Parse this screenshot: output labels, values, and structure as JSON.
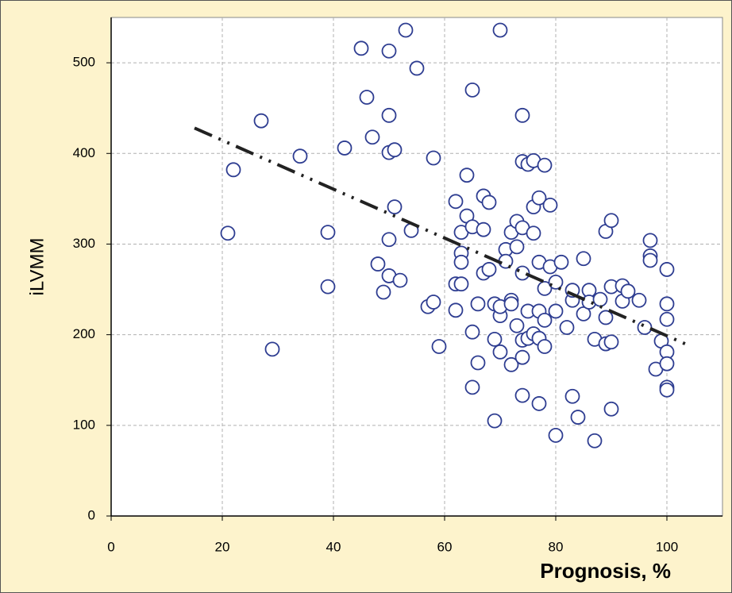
{
  "chart_data": {
    "type": "scatter",
    "x_label": "Prognosis, %",
    "y_label": "iLVMM",
    "xlim": [
      0,
      110
    ],
    "ylim": [
      0,
      550
    ],
    "xticks": [
      0,
      20,
      40,
      60,
      80,
      100
    ],
    "yticks": [
      0,
      100,
      200,
      300,
      400,
      500
    ],
    "grid": true,
    "color": "#2e3d91",
    "x": [
      21,
      22,
      27,
      29,
      34,
      39,
      39,
      42,
      45,
      46,
      47,
      48,
      49,
      50,
      50,
      50,
      50,
      50,
      51,
      51,
      52,
      53,
      54,
      55,
      57,
      58,
      58,
      59,
      62,
      62,
      62,
      63,
      63,
      63,
      63,
      64,
      64,
      65,
      65,
      65,
      65,
      66,
      66,
      67,
      67,
      67,
      68,
      68,
      69,
      69,
      69,
      70,
      70,
      70,
      70,
      71,
      71,
      72,
      72,
      72,
      72,
      73,
      73,
      73,
      74,
      74,
      74,
      74,
      74,
      74,
      74,
      75,
      75,
      75,
      76,
      76,
      76,
      76,
      77,
      77,
      77,
      77,
      77,
      78,
      78,
      78,
      78,
      79,
      79,
      80,
      80,
      80,
      81,
      82,
      83,
      83,
      83,
      84,
      85,
      85,
      86,
      86,
      87,
      87,
      88,
      89,
      89,
      89,
      90,
      90,
      90,
      90,
      92,
      92,
      93,
      95,
      96,
      97,
      97,
      97,
      98,
      99,
      100,
      100,
      100,
      100,
      100,
      100,
      100
    ],
    "y": [
      312,
      382,
      436,
      184,
      397,
      313,
      253,
      406,
      516,
      462,
      418,
      278,
      247,
      442,
      401,
      305,
      265,
      513,
      404,
      341,
      260,
      536,
      315,
      494,
      231,
      236,
      395,
      187,
      347,
      256,
      227,
      313,
      290,
      280,
      256,
      376,
      331,
      319,
      470,
      142,
      203,
      169,
      234,
      353,
      316,
      268,
      346,
      272,
      105,
      195,
      234,
      536,
      181,
      221,
      231,
      294,
      281,
      167,
      238,
      234,
      313,
      325,
      210,
      297,
      442,
      391,
      175,
      133,
      194,
      268,
      318,
      226,
      388,
      196,
      392,
      312,
      341,
      201,
      124,
      280,
      351,
      226,
      196,
      387,
      216,
      187,
      251,
      275,
      343,
      226,
      89,
      258,
      280,
      208,
      132,
      238,
      249,
      109,
      284,
      223,
      249,
      236,
      83,
      195,
      239,
      314,
      219,
      190,
      326,
      118,
      192,
      253,
      254,
      237,
      248,
      238,
      208,
      304,
      287,
      282,
      162,
      193,
      272,
      234,
      217,
      181,
      168,
      142,
      139
    ],
    "trendline": {
      "x": [
        15,
        104
      ],
      "y": [
        428,
        188
      ],
      "color": "#222222"
    }
  }
}
